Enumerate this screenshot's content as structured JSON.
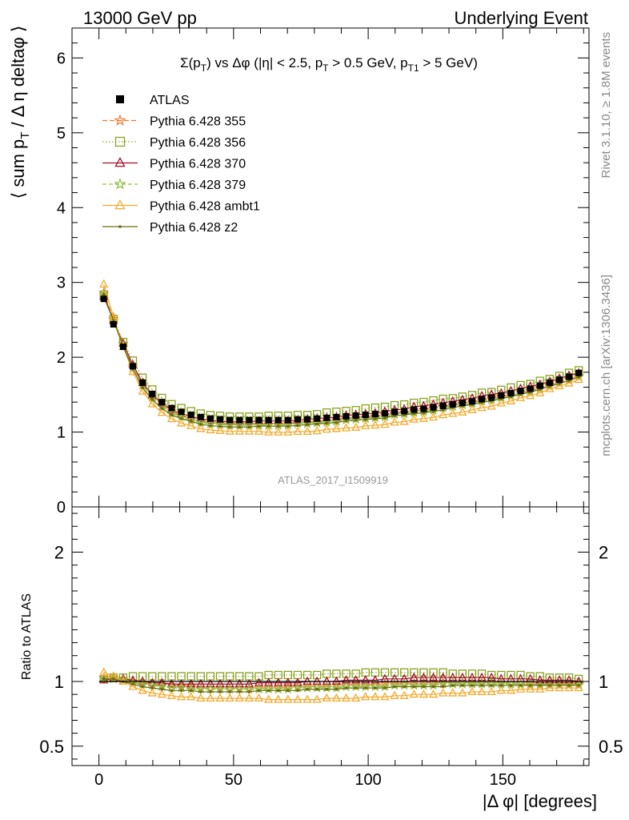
{
  "header": {
    "left_title": "13000 GeV pp",
    "right_title": "Underlying Event"
  },
  "side_text": {
    "rivet": "Rivet 3.1.10, ≥ 1.8M events",
    "mcplots": "mcplots.cern.ch [arXiv:1306.3436]"
  },
  "watermark": "ATLAS_2017_I1509919",
  "plot_title": "Σ(pT) vs Δφ (|η| < 2.5, pT > 0.5 GeV, pT1 > 5 GeV)",
  "colors": {
    "ATLAS": "#000000",
    "355": "#f07a30",
    "356": "#8aa220",
    "370": "#a0102a",
    "379": "#8cc040",
    "ambt1": "#f2a92a",
    "z2": "#6a6a10"
  },
  "chart_data": [
    {
      "type": "line",
      "panel": "main",
      "ylabel": "⟨ sum pT / Δη deltaφ ⟩",
      "xlim": [
        -10,
        182
      ],
      "ylim": [
        0,
        6.4
      ],
      "yticks": [
        0,
        1,
        2,
        3,
        4,
        5,
        6
      ],
      "legend_position": "top-left",
      "x": [
        1.8,
        5.4,
        9.0,
        12.6,
        16.2,
        19.8,
        23.4,
        27.0,
        30.6,
        34.2,
        37.8,
        41.4,
        45.0,
        48.6,
        52.2,
        55.8,
        59.4,
        63.0,
        66.6,
        70.2,
        73.8,
        77.4,
        81.0,
        84.6,
        88.2,
        91.8,
        95.4,
        99.0,
        102.6,
        106.2,
        109.8,
        113.4,
        117.0,
        120.6,
        124.2,
        127.8,
        131.4,
        135.0,
        138.6,
        142.2,
        145.8,
        149.4,
        153.0,
        156.6,
        160.2,
        163.8,
        167.4,
        171.0,
        174.6,
        178.2
      ],
      "atlas": [
        2.78,
        2.44,
        2.14,
        1.88,
        1.66,
        1.51,
        1.4,
        1.32,
        1.27,
        1.23,
        1.2,
        1.18,
        1.17,
        1.16,
        1.16,
        1.16,
        1.16,
        1.16,
        1.16,
        1.16,
        1.17,
        1.17,
        1.18,
        1.19,
        1.2,
        1.21,
        1.22,
        1.23,
        1.24,
        1.25,
        1.27,
        1.28,
        1.3,
        1.31,
        1.33,
        1.35,
        1.37,
        1.39,
        1.41,
        1.44,
        1.46,
        1.49,
        1.52,
        1.55,
        1.58,
        1.62,
        1.66,
        1.7,
        1.74,
        1.79
      ],
      "series": [
        {
          "name": "Pythia 6.428 355",
          "key": "355",
          "marker": "star",
          "dash": "6,3",
          "ratio": [
            1.03,
            1.03,
            1.02,
            1.0,
            0.99,
            0.98,
            0.97,
            0.97,
            0.96,
            0.96,
            0.95,
            0.95,
            0.95,
            0.95,
            0.95,
            0.95,
            0.95,
            0.95,
            0.95,
            0.96,
            0.96,
            0.96,
            0.96,
            0.96,
            0.97,
            0.97,
            0.97,
            0.97,
            0.97,
            0.98,
            0.98,
            0.98,
            0.98,
            0.99,
            0.99,
            0.99,
            0.99,
            0.99,
            0.99,
            0.99,
            0.99,
            0.99,
            0.98,
            0.98,
            0.98,
            0.98,
            0.98,
            0.98,
            0.98,
            0.98
          ]
        },
        {
          "name": "Pythia 6.428 356",
          "key": "356",
          "marker": "square",
          "dash": "1.5,2.5",
          "ratio": [
            1.02,
            1.03,
            1.03,
            1.04,
            1.04,
            1.04,
            1.04,
            1.04,
            1.04,
            1.04,
            1.04,
            1.04,
            1.04,
            1.04,
            1.04,
            1.04,
            1.04,
            1.05,
            1.05,
            1.05,
            1.05,
            1.05,
            1.05,
            1.06,
            1.06,
            1.06,
            1.06,
            1.07,
            1.07,
            1.07,
            1.07,
            1.07,
            1.07,
            1.07,
            1.07,
            1.07,
            1.06,
            1.06,
            1.06,
            1.06,
            1.05,
            1.05,
            1.05,
            1.05,
            1.04,
            1.04,
            1.03,
            1.03,
            1.03,
            1.02
          ]
        },
        {
          "name": "Pythia 6.428 370",
          "key": "370",
          "marker": "triangle",
          "dash": "",
          "ratio": [
            1.01,
            1.02,
            1.02,
            1.01,
            1.0,
            0.99,
            0.99,
            0.98,
            0.98,
            0.98,
            0.98,
            0.98,
            0.98,
            0.98,
            0.98,
            0.98,
            0.99,
            0.99,
            0.99,
            0.99,
            0.99,
            1.0,
            1.0,
            1.0,
            1.0,
            1.01,
            1.01,
            1.01,
            1.01,
            1.02,
            1.02,
            1.02,
            1.03,
            1.03,
            1.03,
            1.03,
            1.03,
            1.03,
            1.03,
            1.03,
            1.03,
            1.02,
            1.02,
            1.02,
            1.02,
            1.01,
            1.01,
            1.01,
            1.01,
            1.0
          ]
        },
        {
          "name": "Pythia 6.428 379",
          "key": "379",
          "marker": "star",
          "dash": "5,3",
          "ratio": [
            1.02,
            1.02,
            1.01,
            0.99,
            0.98,
            0.97,
            0.96,
            0.95,
            0.95,
            0.94,
            0.94,
            0.94,
            0.94,
            0.94,
            0.94,
            0.94,
            0.94,
            0.94,
            0.94,
            0.94,
            0.95,
            0.95,
            0.95,
            0.95,
            0.95,
            0.96,
            0.96,
            0.96,
            0.96,
            0.96,
            0.97,
            0.97,
            0.97,
            0.97,
            0.97,
            0.98,
            0.98,
            0.98,
            0.98,
            0.98,
            0.98,
            0.98,
            0.98,
            0.98,
            0.97,
            0.97,
            0.97,
            0.97,
            0.97,
            0.97
          ]
        },
        {
          "name": "Pythia 6.428 ambt1",
          "key": "ambt1",
          "marker": "triangle",
          "dash": "",
          "ratio": [
            1.07,
            1.04,
            1.0,
            0.96,
            0.93,
            0.91,
            0.9,
            0.89,
            0.88,
            0.88,
            0.87,
            0.87,
            0.87,
            0.87,
            0.87,
            0.87,
            0.87,
            0.86,
            0.86,
            0.86,
            0.86,
            0.86,
            0.86,
            0.87,
            0.87,
            0.87,
            0.87,
            0.88,
            0.88,
            0.88,
            0.89,
            0.89,
            0.9,
            0.9,
            0.9,
            0.91,
            0.91,
            0.91,
            0.92,
            0.92,
            0.92,
            0.93,
            0.93,
            0.94,
            0.94,
            0.94,
            0.95,
            0.95,
            0.95,
            0.95
          ]
        },
        {
          "name": "Pythia 6.428 z2",
          "key": "z2",
          "marker": "dot",
          "dash": "",
          "ratio": [
            1.02,
            1.02,
            1.0,
            0.98,
            0.96,
            0.95,
            0.94,
            0.93,
            0.93,
            0.93,
            0.92,
            0.92,
            0.92,
            0.92,
            0.92,
            0.92,
            0.93,
            0.93,
            0.93,
            0.93,
            0.93,
            0.94,
            0.94,
            0.94,
            0.94,
            0.95,
            0.95,
            0.95,
            0.95,
            0.95,
            0.96,
            0.96,
            0.96,
            0.96,
            0.96,
            0.96,
            0.97,
            0.97,
            0.97,
            0.97,
            0.97,
            0.97,
            0.97,
            0.97,
            0.97,
            0.97,
            0.97,
            0.97,
            0.97,
            0.97
          ]
        }
      ]
    },
    {
      "type": "line",
      "panel": "ratio",
      "ylabel": "Ratio to ATLAS",
      "xlabel": "|Δ φ| [degrees]",
      "xlim": [
        -10,
        182
      ],
      "ylim": [
        0.35,
        2.35
      ],
      "yticks": [
        0.5,
        1,
        2
      ],
      "xticks": [
        0,
        50,
        100,
        150
      ]
    }
  ]
}
